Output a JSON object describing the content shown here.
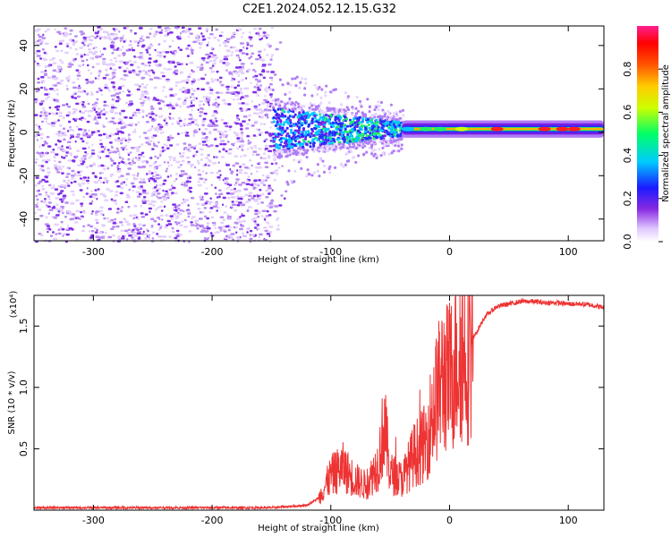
{
  "title": "C2E1.2024.052.12.15.G32",
  "colors": {
    "snr_line": "#ee3333",
    "spec_background": "#ffffff"
  },
  "chart_data": [
    {
      "type": "heatmap",
      "title": "C2E1.2024.052.12.15.G32",
      "xlabel": "Height of straight line (km)",
      "ylabel": "Frequency (Hz)",
      "xlim": [
        -350,
        130
      ],
      "ylim": [
        -50,
        49
      ],
      "xticks": [
        -300,
        -200,
        -100,
        0,
        100
      ],
      "yticks": [
        -40,
        -20,
        0,
        20,
        40
      ],
      "grid": false,
      "colorbar": {
        "label": "Normalized spectral amplitude",
        "range": [
          0.0,
          1.0
        ],
        "ticks": [
          "0.0",
          "0.2",
          "0.4",
          "0.6",
          "0.8"
        ],
        "colormap": "rainbow (white-violet-blue-cyan-green-yellow-orange-red-magenta)"
      },
      "regions": [
        {
          "x_range": [
            -350,
            -150
          ],
          "freq_spread_hz": [
            -50,
            49
          ],
          "amplitude": 0.08
        },
        {
          "x_range": [
            -150,
            -100
          ],
          "freq_spread_hz": [
            -15,
            30
          ],
          "amplitude": 0.12
        },
        {
          "x_range": [
            -100,
            -40
          ],
          "freq_spread_hz": [
            -15,
            15
          ],
          "amplitude": 0.25
        },
        {
          "x_range": [
            -40,
            130
          ],
          "freq_spread_hz": [
            -2,
            4
          ],
          "amplitude": 0.95,
          "center_hz": 1.5
        }
      ]
    },
    {
      "type": "line",
      "xlabel": "Height of straight line (km)",
      "ylabel": "SNR (10 * v/v)",
      "y_multiplier": "(x10⁴)",
      "xlim": [
        -350,
        130
      ],
      "ylim": [
        0,
        1.75
      ],
      "xticks": [
        -300,
        -200,
        -100,
        0,
        100
      ],
      "yticks": [
        0.5,
        1.0,
        1.5
      ],
      "ytick_labels": [
        "0.5",
        "1.0",
        "1.5"
      ],
      "grid": false,
      "series": [
        {
          "x": [
            -350,
            -300,
            -250,
            -200,
            -150,
            -120,
            -110,
            -100,
            -90,
            -80,
            -70,
            -60,
            -55,
            -50,
            -40,
            -30,
            -20,
            -15,
            -10,
            -5,
            0,
            5,
            10,
            15,
            20,
            30,
            40,
            50,
            60,
            70,
            80,
            90,
            100,
            110,
            120,
            130
          ],
          "y": [
            0.02,
            0.02,
            0.02,
            0.02,
            0.02,
            0.04,
            0.1,
            0.28,
            0.35,
            0.25,
            0.2,
            0.38,
            0.7,
            0.3,
            0.25,
            0.45,
            0.55,
            0.78,
            0.95,
            1.1,
            1.05,
            1.22,
            1.3,
            1.28,
            1.4,
            1.58,
            1.66,
            1.68,
            1.7,
            1.7,
            1.69,
            1.69,
            1.68,
            1.68,
            1.67,
            1.65
          ]
        }
      ]
    }
  ]
}
